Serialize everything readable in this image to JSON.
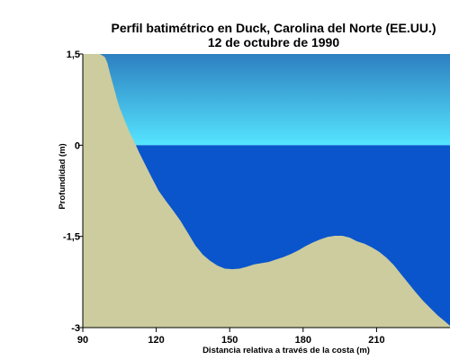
{
  "chart_data": {
    "type": "area",
    "title": "Perfil batimétrico en Duck, Carolina del Norte (EE.UU.)",
    "subtitle": "12 de octubre de 1990",
    "xlabel": "Distancia relativa a través de la costa (m)",
    "ylabel": "Profundidad (m)",
    "xlim": [
      90,
      240
    ],
    "ylim": [
      -3,
      1.5
    ],
    "xticks": [
      90,
      120,
      150,
      180,
      210
    ],
    "xtick_labels": [
      "90",
      "120",
      "150",
      "180",
      "210"
    ],
    "yticks": [
      1.5,
      0,
      -1.5,
      -3
    ],
    "ytick_labels": [
      "1,5",
      "0",
      "-1,5",
      "-3"
    ],
    "grid": false,
    "colors": {
      "seabed": "#cccc9e",
      "water_surface": "#55e5ff",
      "water_deep": "#0a55cc",
      "sky": "#2d7fc0"
    },
    "series": [
      {
        "x": [
          97,
          99,
          100,
          101,
          102,
          103,
          104,
          105,
          107,
          109,
          111,
          113,
          115,
          118,
          121,
          124,
          127,
          130,
          133,
          136,
          139,
          142,
          145,
          148,
          151,
          154,
          157,
          160,
          163,
          166,
          169,
          172,
          175,
          178,
          181,
          184,
          187,
          190,
          193,
          196,
          199,
          202,
          205,
          208,
          211,
          214,
          217,
          220,
          223,
          226,
          229,
          232,
          235,
          238,
          240
        ],
        "y": [
          1.5,
          1.45,
          1.36,
          1.2,
          1.05,
          0.9,
          0.75,
          0.62,
          0.42,
          0.22,
          0.06,
          -0.12,
          -0.28,
          -0.52,
          -0.75,
          -0.92,
          -1.08,
          -1.25,
          -1.45,
          -1.65,
          -1.8,
          -1.9,
          -1.98,
          -2.03,
          -2.04,
          -2.03,
          -2.0,
          -1.96,
          -1.94,
          -1.92,
          -1.88,
          -1.84,
          -1.79,
          -1.73,
          -1.66,
          -1.6,
          -1.55,
          -1.51,
          -1.49,
          -1.49,
          -1.52,
          -1.58,
          -1.62,
          -1.68,
          -1.75,
          -1.85,
          -1.97,
          -2.12,
          -2.27,
          -2.42,
          -2.56,
          -2.68,
          -2.8,
          -2.9,
          -2.97
        ]
      }
    ]
  }
}
